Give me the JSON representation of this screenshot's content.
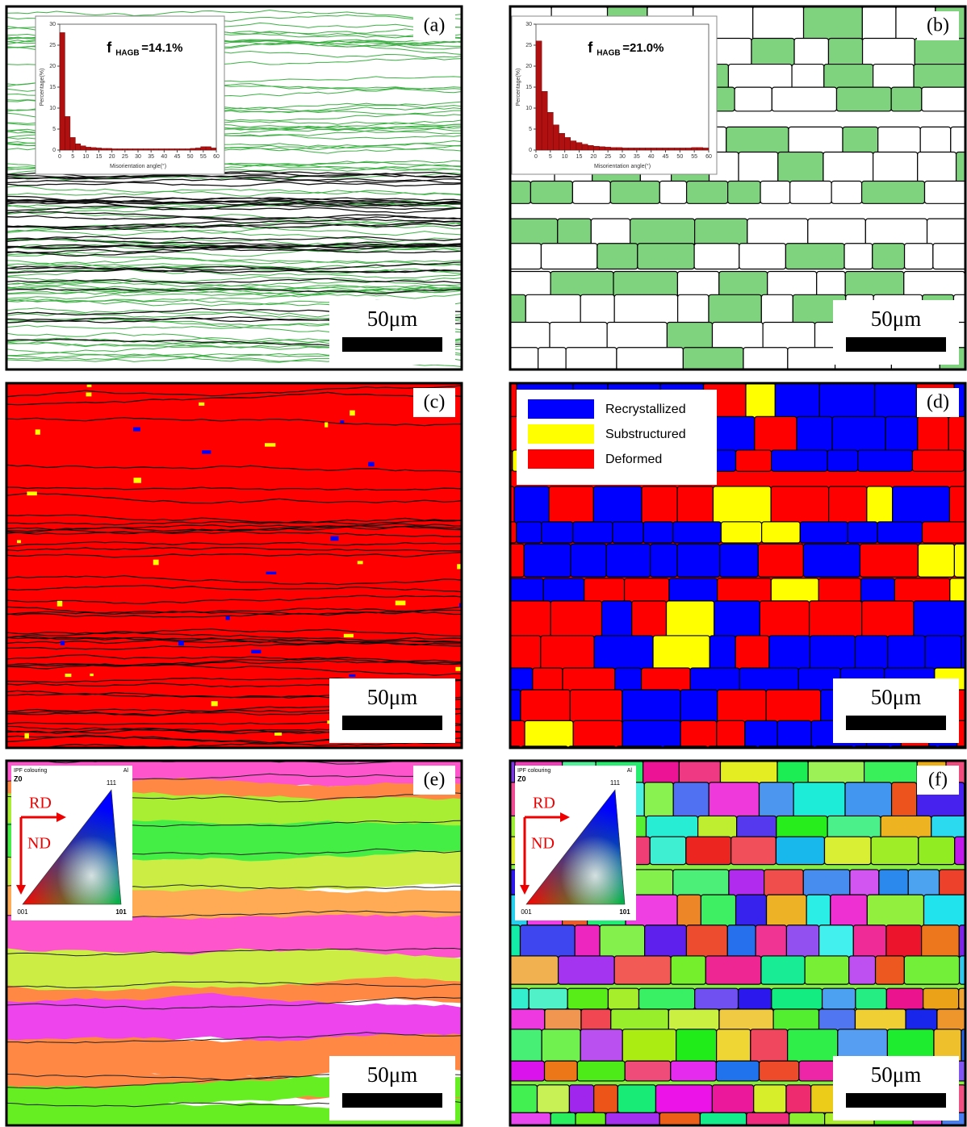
{
  "panels": [
    {
      "label": "(a)",
      "scale_bar": "50μm",
      "inset": {
        "type": "bar",
        "annotation": {
          "main": "f",
          "sub": "HAGB",
          "rest": "=14.1%"
        },
        "y_label": "Percentage(%)",
        "x_label": "Misorientation angle(°)",
        "color": "#b01010",
        "bins": [
          0,
          2,
          4,
          6,
          8,
          10,
          12,
          14,
          16,
          18,
          20,
          22,
          24,
          26,
          28,
          30,
          32,
          34,
          36,
          38,
          40,
          42,
          44,
          46,
          48,
          50,
          52,
          54,
          56,
          58,
          60
        ],
        "values": [
          28,
          8,
          3,
          1.5,
          1,
          0.7,
          0.6,
          0.5,
          0.4,
          0.4,
          0.3,
          0.3,
          0.3,
          0.3,
          0.3,
          0.3,
          0.3,
          0.3,
          0.3,
          0.3,
          0.3,
          0.3,
          0.3,
          0.3,
          0.3,
          0.4,
          0.5,
          0.8,
          0.8,
          0.5
        ],
        "xlim": [
          0,
          60
        ],
        "ylim": [
          0,
          30
        ],
        "xticks": [
          0,
          5,
          10,
          15,
          20,
          25,
          30,
          35,
          40,
          45,
          50,
          55,
          60
        ],
        "yticks": [
          0,
          5,
          10,
          15,
          20,
          25,
          30
        ]
      }
    },
    {
      "label": "(b)",
      "scale_bar": "50μm",
      "inset": {
        "type": "bar",
        "annotation": {
          "main": "f",
          "sub": "HAGB",
          "rest": "=21.0%"
        },
        "y_label": "Percentage(%)",
        "x_label": "Misorientation angle(°)",
        "color": "#b01010",
        "bins": [
          0,
          2,
          4,
          6,
          8,
          10,
          12,
          14,
          16,
          18,
          20,
          22,
          24,
          26,
          28,
          30,
          32,
          34,
          36,
          38,
          40,
          42,
          44,
          46,
          48,
          50,
          52,
          54,
          56,
          58,
          60
        ],
        "values": [
          26,
          14,
          9,
          6,
          4,
          3,
          2.2,
          1.8,
          1.4,
          1.1,
          0.9,
          0.8,
          0.7,
          0.6,
          0.6,
          0.5,
          0.5,
          0.5,
          0.5,
          0.5,
          0.5,
          0.5,
          0.5,
          0.5,
          0.5,
          0.5,
          0.5,
          0.6,
          0.6,
          0.5
        ],
        "xlim": [
          0,
          60
        ],
        "ylim": [
          0,
          30
        ],
        "xticks": [
          0,
          5,
          10,
          15,
          20,
          25,
          30,
          35,
          40,
          45,
          50,
          55,
          60
        ],
        "yticks": [
          0,
          5,
          10,
          15,
          20,
          25,
          30
        ]
      }
    },
    {
      "label": "(c)",
      "scale_bar": "50μm"
    },
    {
      "label": "(d)",
      "scale_bar": "50μm",
      "legend": [
        {
          "name": "Recrystallized",
          "color": "#0000ff"
        },
        {
          "name": "Substructured",
          "color": "#ffff00"
        },
        {
          "name": "Deformed",
          "color": "#ff0000"
        }
      ]
    },
    {
      "label": "(e)",
      "scale_bar": "50μm",
      "ipf": {
        "title": "IPF colouring",
        "material": "Al",
        "axis": "Z0",
        "rd": "RD",
        "nd": "ND",
        "corner_111": "111",
        "corner_001": "001",
        "corner_101": "101"
      }
    },
    {
      "label": "(f)",
      "scale_bar": "50μm",
      "ipf": {
        "title": "IPF colouring",
        "material": "Al",
        "axis": "Z0",
        "rd": "RD",
        "nd": "ND",
        "corner_111": "111",
        "corner_001": "001",
        "corner_101": "101"
      }
    }
  ]
}
